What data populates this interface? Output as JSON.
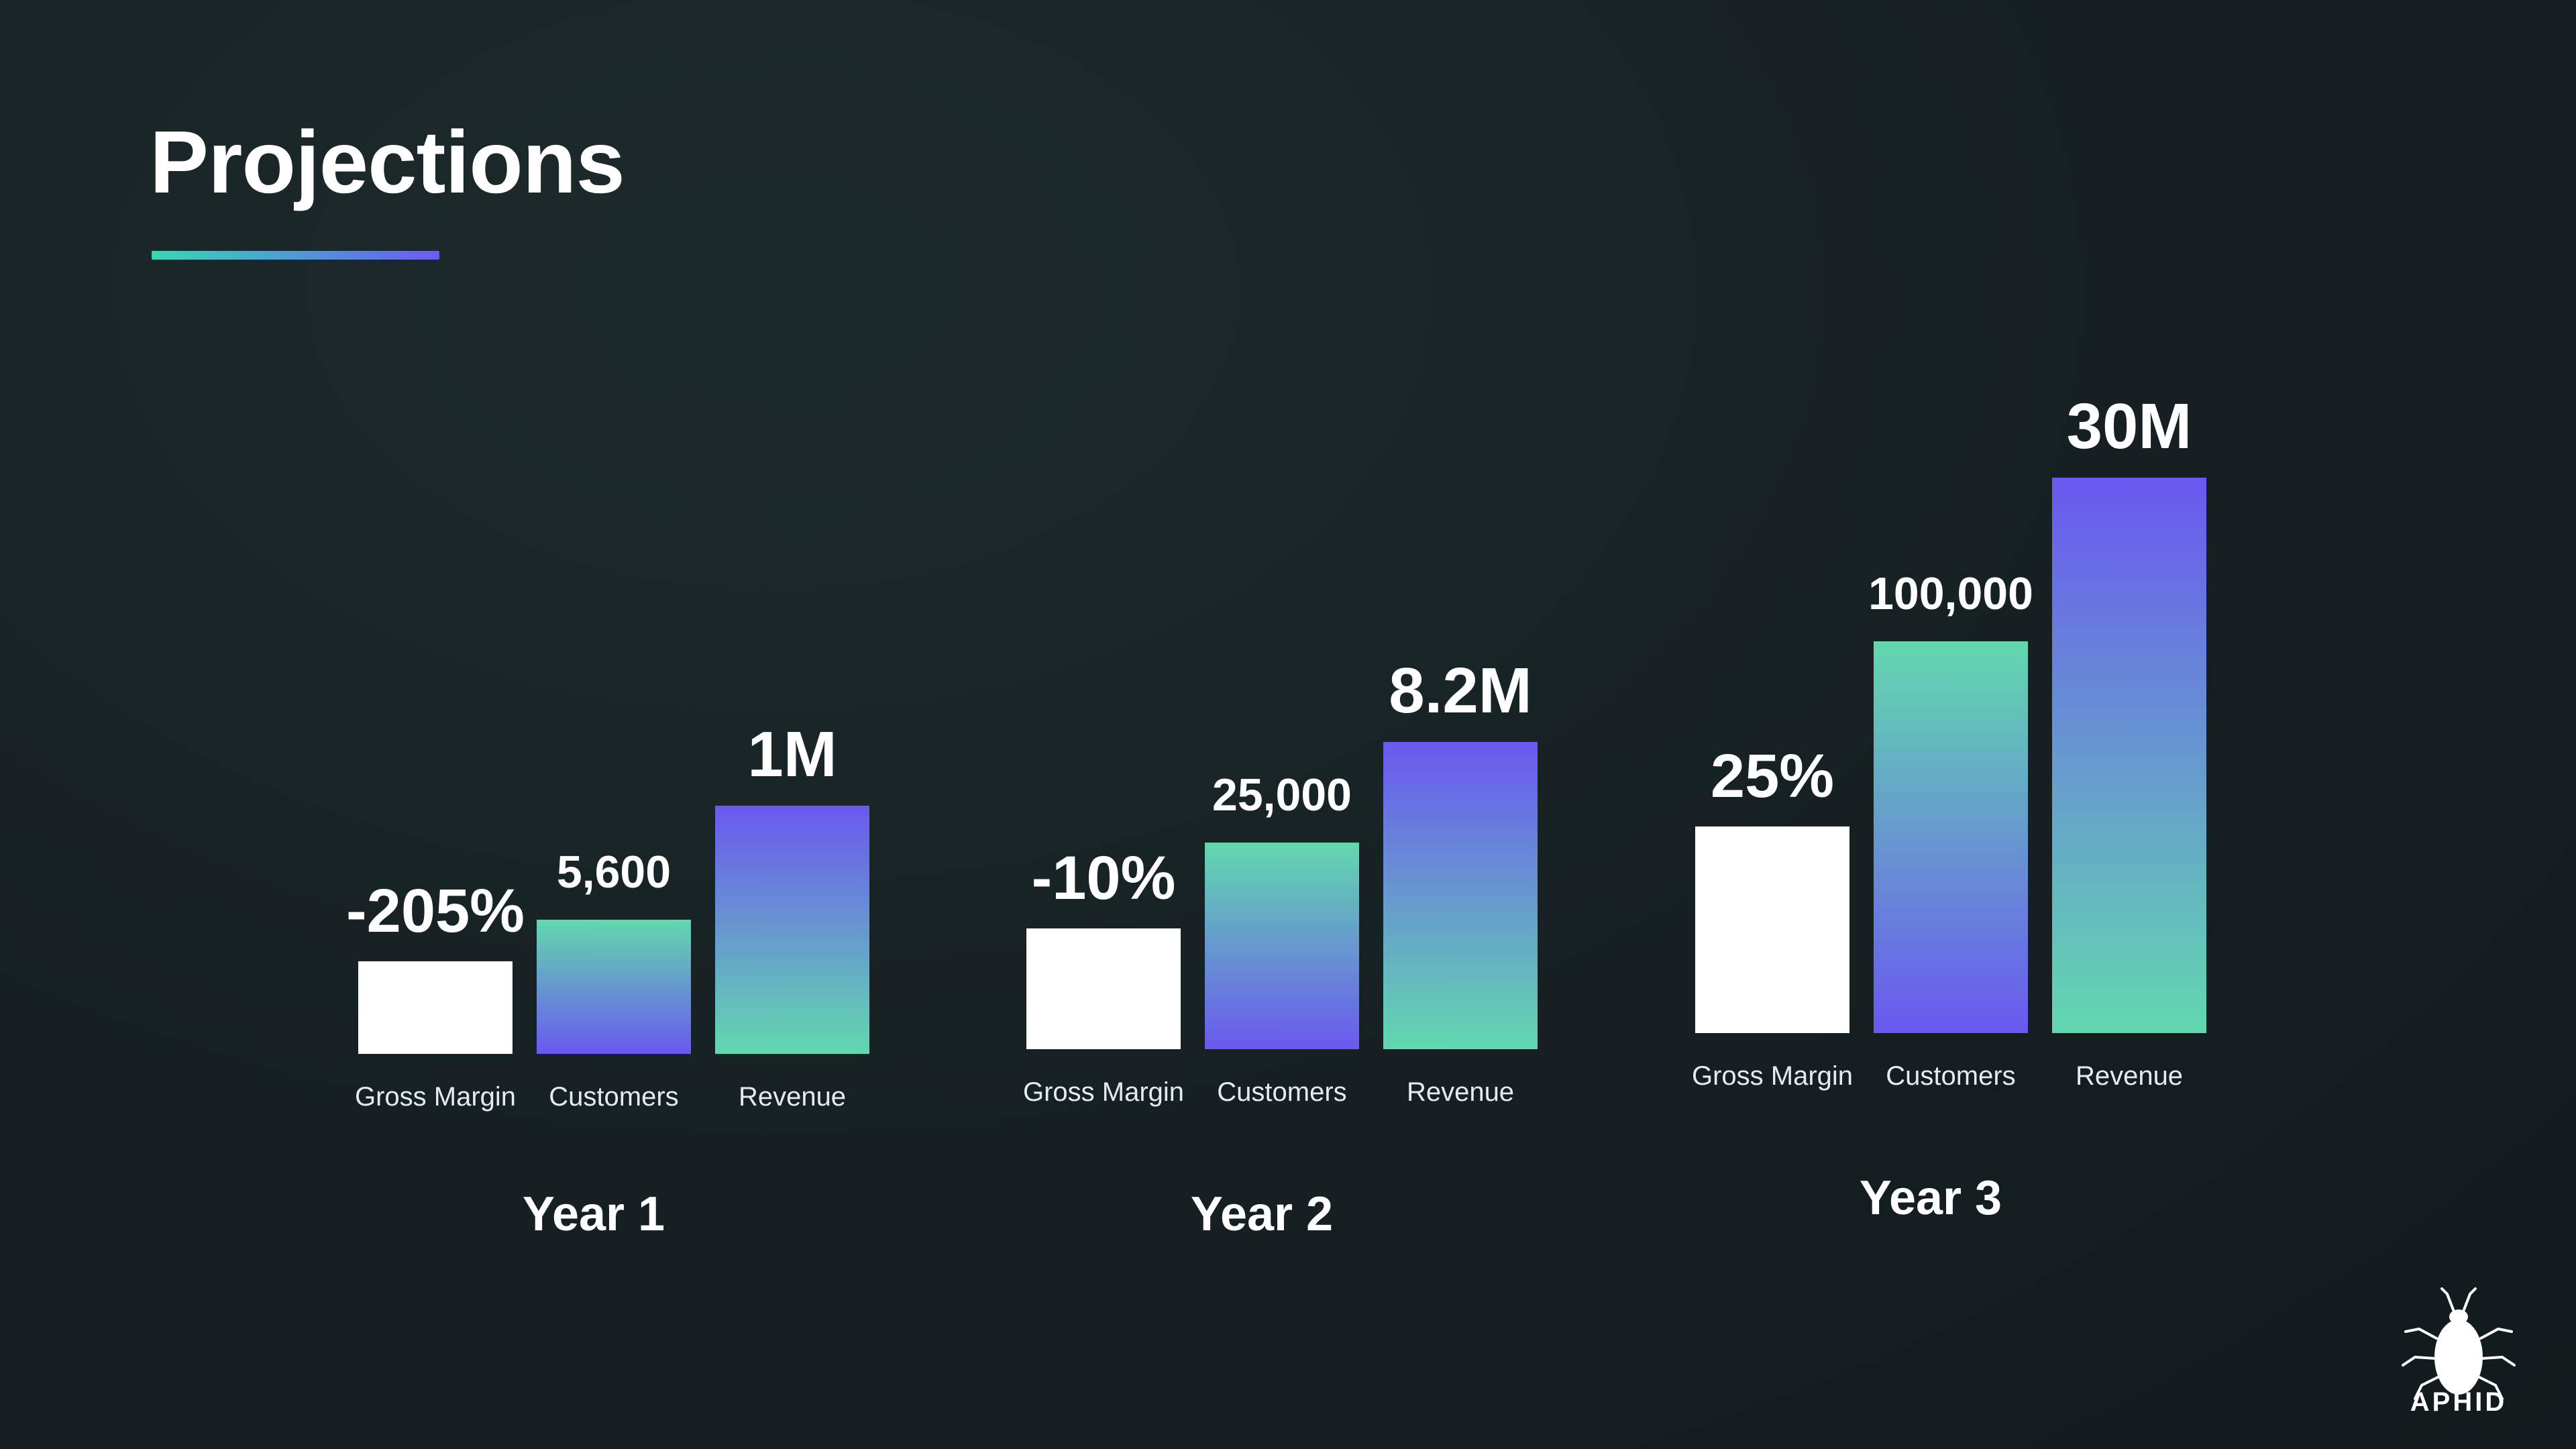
{
  "page": {
    "title": "Projections"
  },
  "logo": {
    "icon": "aphid-icon",
    "text": "APHID"
  },
  "colors": {
    "teal": "#5fd6b0",
    "purple": "#6b5cf0",
    "white_bar": "#ffffff"
  },
  "chart_data": {
    "type": "bar",
    "title": "Projections",
    "categories": [
      "Year 1",
      "Year 2",
      "Year 3"
    ],
    "series": [
      {
        "name": "Gross Margin",
        "values": [
          -205,
          -10,
          25
        ],
        "labels": [
          "-205%",
          "-10%",
          "25%"
        ]
      },
      {
        "name": "Customers",
        "values": [
          5600,
          25000,
          100000
        ],
        "labels": [
          "5,600",
          "25,000",
          "100,000"
        ]
      },
      {
        "name": "Revenue",
        "values": [
          1000000,
          8200000,
          30000000
        ],
        "labels": [
          "1M",
          "8.2M",
          "30M"
        ]
      }
    ],
    "xlabel": "",
    "ylabel": "",
    "grid": false,
    "legend": "none"
  }
}
